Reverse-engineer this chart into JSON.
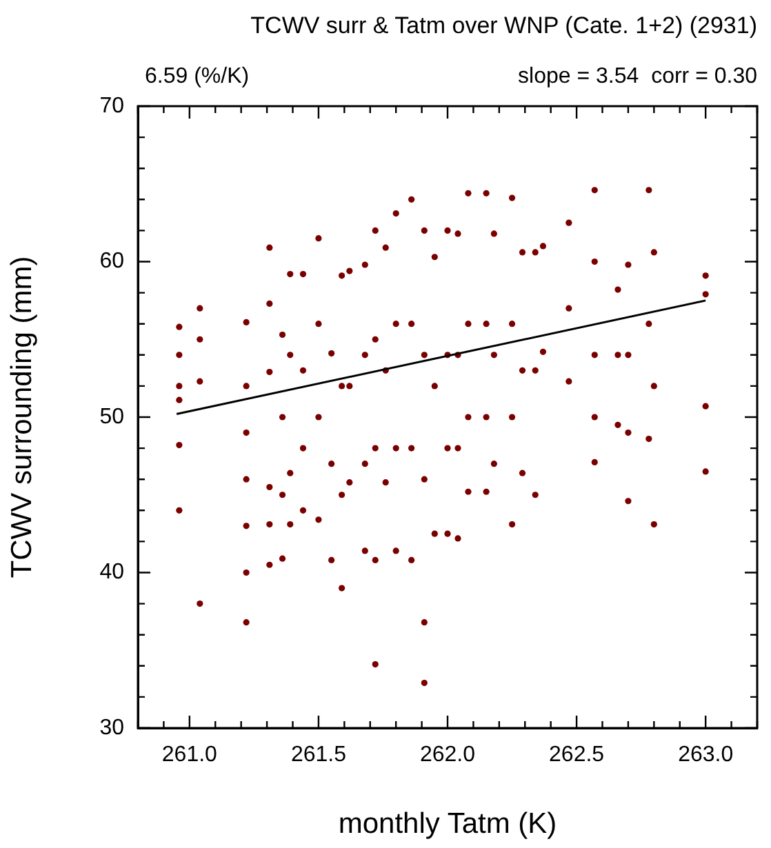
{
  "chart_data": {
    "type": "scatter",
    "title": "TCWV surr & Tatm over WNP (Cate. 1+2) (2931)",
    "xlabel": "monthly Tatm (K)",
    "ylabel": "TCWV surrounding (mm)",
    "annotations": [
      "6.59 (%/K)",
      "slope = 3.54  corr = 0.30"
    ],
    "xlim": [
      260.8,
      263.2
    ],
    "xticks": [
      {
        "value": 260.8,
        "label": null
      },
      {
        "value": 260.9,
        "label": null
      },
      {
        "value": 261,
        "label": "261.0"
      },
      {
        "value": 261.1,
        "label": null
      },
      {
        "value": 261.2,
        "label": null
      },
      {
        "value": 261.3,
        "label": null
      },
      {
        "value": 261.4,
        "label": null
      },
      {
        "value": 261.5,
        "label": "261.5"
      },
      {
        "value": 261.6,
        "label": null
      },
      {
        "value": 261.7,
        "label": null
      },
      {
        "value": 261.8,
        "label": null
      },
      {
        "value": 261.9,
        "label": null
      },
      {
        "value": 262,
        "label": "262.0"
      },
      {
        "value": 262.1,
        "label": null
      },
      {
        "value": 262.2,
        "label": null
      },
      {
        "value": 262.3,
        "label": null
      },
      {
        "value": 262.4,
        "label": null
      },
      {
        "value": 262.5,
        "label": "262.5"
      },
      {
        "value": 262.6,
        "label": null
      },
      {
        "value": 262.7,
        "label": null
      },
      {
        "value": 262.8,
        "label": null
      },
      {
        "value": 262.9,
        "label": null
      },
      {
        "value": 263,
        "label": "263.0"
      },
      {
        "value": 263.1,
        "label": null
      },
      {
        "value": 263.2,
        "label": null
      }
    ],
    "ylim": [
      30,
      70
    ],
    "yticks": [
      30,
      {
        "value": 32,
        "label": null
      },
      {
        "value": 34,
        "label": null
      },
      {
        "value": 36,
        "label": null
      },
      {
        "value": 38,
        "label": null
      },
      40,
      {
        "value": 42,
        "label": null
      },
      {
        "value": 44,
        "label": null
      },
      {
        "value": 46,
        "label": null
      },
      {
        "value": 48,
        "label": null
      },
      50,
      {
        "value": 52,
        "label": null
      },
      {
        "value": 54,
        "label": null
      },
      {
        "value": 56,
        "label": null
      },
      {
        "value": 58,
        "label": null
      },
      60,
      {
        "value": 62,
        "label": null
      },
      {
        "value": 64,
        "label": null
      },
      {
        "value": 66,
        "label": null
      },
      {
        "value": 68,
        "label": null
      },
      70
    ],
    "grid": false,
    "legend": false,
    "marker": "circle",
    "series": [
      {
        "color": "#7a0000",
        "x": [
          260.96,
          260.96,
          260.96,
          260.96,
          260.96,
          260.96,
          261.04,
          261.04,
          261.04,
          261.04,
          261.22,
          261.22,
          261.22,
          261.22,
          261.22,
          261.22,
          261.22,
          261.31,
          261.31,
          261.31,
          261.31,
          261.31,
          261.31,
          261.36,
          261.36,
          261.36,
          261.36,
          261.39,
          261.39,
          261.39,
          261.39,
          261.44,
          261.44,
          261.44,
          261.44,
          261.5,
          261.5,
          261.5,
          261.5,
          261.55,
          261.55,
          261.55,
          261.59,
          261.59,
          261.59,
          261.59,
          261.62,
          261.62,
          261.62,
          261.68,
          261.68,
          261.68,
          261.68,
          261.72,
          261.72,
          261.72,
          261.72,
          261.72,
          261.76,
          261.76,
          261.76,
          261.8,
          261.8,
          261.8,
          261.8,
          261.86,
          261.86,
          261.86,
          261.86,
          261.91,
          261.91,
          261.91,
          261.91,
          261.91,
          261.95,
          261.95,
          261.95,
          262,
          262,
          262,
          262,
          262.04,
          262.04,
          262.04,
          262.04,
          262.08,
          262.08,
          262.08,
          262.08,
          262.15,
          262.15,
          262.15,
          262.15,
          262.18,
          262.18,
          262.18,
          262.25,
          262.25,
          262.25,
          262.25,
          262.29,
          262.29,
          262.29,
          262.34,
          262.34,
          262.34,
          262.37,
          262.37,
          262.47,
          262.47,
          262.47,
          262.57,
          262.57,
          262.57,
          262.57,
          262.57,
          262.66,
          262.66,
          262.66,
          262.7,
          262.7,
          262.7,
          262.7,
          262.78,
          262.78,
          262.78,
          262.8,
          262.8,
          262.8,
          263,
          263,
          263,
          263
        ],
        "values": [
          55.8,
          54.0,
          52.0,
          51.1,
          48.2,
          44.0,
          57.0,
          55.0,
          52.3,
          38.0,
          56.1,
          52.0,
          49.0,
          46.0,
          43.0,
          40.0,
          36.8,
          60.9,
          57.3,
          52.9,
          45.5,
          43.1,
          40.5,
          55.3,
          50.0,
          45.0,
          40.9,
          59.2,
          54.0,
          46.4,
          43.1,
          59.2,
          53.0,
          48.0,
          44.0,
          61.5,
          56.0,
          50.0,
          43.4,
          54.1,
          47.0,
          40.8,
          59.1,
          52.0,
          45.0,
          39.0,
          59.4,
          52.0,
          45.8,
          59.8,
          54.0,
          47.0,
          41.4,
          62.0,
          55.0,
          48.0,
          40.8,
          34.1,
          60.9,
          53.0,
          45.8,
          63.1,
          56.0,
          48.0,
          41.4,
          64.0,
          56.0,
          48.0,
          40.8,
          62.0,
          54.0,
          46.0,
          36.8,
          32.9,
          60.3,
          52.0,
          42.5,
          62.0,
          54.0,
          48.0,
          42.5,
          61.8,
          54.0,
          48.0,
          42.2,
          64.4,
          56.0,
          50.0,
          45.2,
          64.4,
          56.0,
          50.0,
          45.2,
          61.8,
          54.0,
          47.0,
          64.1,
          56.0,
          50.0,
          43.1,
          60.6,
          53.0,
          46.4,
          60.6,
          53.0,
          45.0,
          61.0,
          54.2,
          62.5,
          57.0,
          52.3,
          64.6,
          60.0,
          54.0,
          50.0,
          47.1,
          58.2,
          54.0,
          49.5,
          59.8,
          54.0,
          49.0,
          44.6,
          64.6,
          56.0,
          48.6,
          60.6,
          52.0,
          43.1,
          59.1,
          57.9,
          50.7,
          46.5
        ]
      },
      {
        "type": "line",
        "color": "#000000",
        "marker": "none",
        "x": [
          260.95,
          263.0
        ],
        "values": [
          50.2,
          57.5
        ]
      }
    ]
  }
}
